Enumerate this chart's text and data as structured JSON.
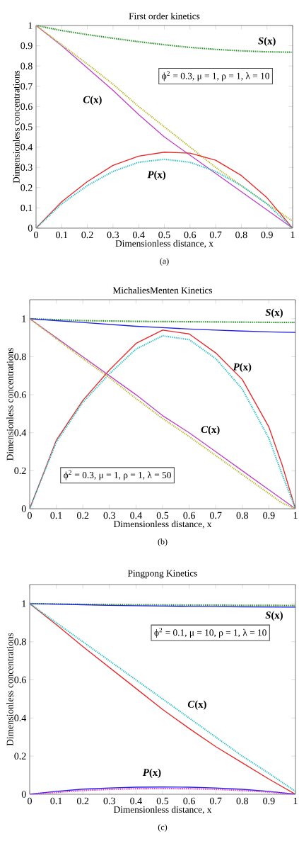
{
  "chart_data": [
    {
      "type": "line",
      "title": "First order kinetics",
      "xlabel": "Dimensionless distance, x",
      "ylabel": "Dimensionless concentrations",
      "xlim": [
        0,
        1
      ],
      "ylim": [
        0,
        1
      ],
      "xticks": [
        0,
        0.1,
        0.2,
        0.3,
        0.4,
        0.5,
        0.6,
        0.7,
        0.8,
        0.9,
        1
      ],
      "yticks": [
        0,
        0.1,
        0.2,
        0.3,
        0.4,
        0.5,
        0.6,
        0.7,
        0.8,
        0.9,
        1
      ],
      "x": [
        0,
        0.1,
        0.2,
        0.3,
        0.4,
        0.5,
        0.6,
        0.7,
        0.8,
        0.9,
        1
      ],
      "series": [
        {
          "color": "#1a8a1a",
          "line_style": "dotted",
          "values": [
            1,
            0.975,
            0.955,
            0.937,
            0.92,
            0.905,
            0.892,
            0.882,
            0.875,
            0.87,
            0.868
          ]
        },
        {
          "color": "#c040c8",
          "line_style": "solid",
          "values": [
            1,
            0.9,
            0.79,
            0.68,
            0.56,
            0.45,
            0.36,
            0.27,
            0.18,
            0.09,
            0
          ]
        },
        {
          "color": "#b8b830",
          "line_style": "dotted",
          "values": [
            1,
            0.905,
            0.81,
            0.71,
            0.6,
            0.5,
            0.4,
            0.3,
            0.21,
            0.12,
            0.035
          ]
        },
        {
          "color": "#e82828",
          "line_style": "solid",
          "values": [
            0,
            0.13,
            0.23,
            0.31,
            0.355,
            0.375,
            0.37,
            0.335,
            0.26,
            0.15,
            0
          ]
        },
        {
          "color": "#30c0c8",
          "line_style": "dotted",
          "values": [
            0,
            0.12,
            0.21,
            0.28,
            0.325,
            0.34,
            0.325,
            0.28,
            0.21,
            0.12,
            0
          ]
        }
      ],
      "annotations": [
        "*S*(x)",
        "*C*(x)",
        "*P*(x)",
        "ϕ$^{2}$ = 0.3, μ = 1, ρ = 1, λ = 10",
        "(a)"
      ]
    },
    {
      "type": "line",
      "title": "MichaliesMenten Kinetics",
      "xlabel": "Dimensionless distance, x",
      "ylabel": "Dimensionless concentrations",
      "xlim": [
        0,
        1
      ],
      "ylim": [
        0,
        1.1
      ],
      "xticks": [
        0,
        0.1,
        0.2,
        0.3,
        0.4,
        0.5,
        0.6,
        0.7,
        0.8,
        0.9,
        1
      ],
      "yticks": [
        0,
        0.2,
        0.4,
        0.6,
        0.8,
        1
      ],
      "x": [
        0,
        0.1,
        0.2,
        0.3,
        0.4,
        0.5,
        0.6,
        0.7,
        0.8,
        0.9,
        0.95,
        1
      ],
      "series": [
        {
          "color": "#1a8a1a",
          "line_style": "dotted",
          "values": [
            1,
            0.995,
            0.99,
            0.988,
            0.986,
            0.985,
            0.984,
            0.983,
            0.982,
            0.981,
            0.98,
            0.98
          ]
        },
        {
          "color": "#2020e0",
          "line_style": "solid",
          "values": [
            1,
            0.99,
            0.98,
            0.97,
            0.96,
            0.953,
            0.946,
            0.94,
            0.935,
            0.931,
            0.929,
            0.928
          ]
        },
        {
          "color": "#e82828",
          "line_style": "solid",
          "values": [
            0,
            0.36,
            0.57,
            0.73,
            0.87,
            0.94,
            0.92,
            0.82,
            0.68,
            0.43,
            0.23,
            0
          ]
        },
        {
          "color": "#30c0c8",
          "line_style": "dotted",
          "values": [
            0,
            0.35,
            0.56,
            0.71,
            0.84,
            0.91,
            0.89,
            0.79,
            0.63,
            0.37,
            0.18,
            0
          ]
        },
        {
          "color": "#c040c8",
          "line_style": "solid",
          "values": [
            1,
            0.9,
            0.8,
            0.7,
            0.6,
            0.49,
            0.4,
            0.3,
            0.2,
            0.1,
            0.05,
            0
          ]
        },
        {
          "color": "#b8b830",
          "line_style": "dotted",
          "values": [
            1,
            0.895,
            0.79,
            0.69,
            0.58,
            0.475,
            0.38,
            0.28,
            0.18,
            0.08,
            0.03,
            0
          ]
        }
      ],
      "annotations": [
        "*S*(x)",
        "*P*(x)",
        "*C*(x)",
        "ϕ$^{2}$ = 0.3, μ = 1, ρ = 1, λ = 50",
        "(b)"
      ]
    },
    {
      "type": "line",
      "title": "Pingpong Kinetics",
      "xlabel": "Dimensionless distance, x",
      "ylabel": "Dimensionless concentrations",
      "xlim": [
        0,
        1
      ],
      "ylim": [
        0,
        1.1
      ],
      "xticks": [
        0,
        0.1,
        0.2,
        0.3,
        0.4,
        0.5,
        0.6,
        0.7,
        0.8,
        0.9,
        1
      ],
      "yticks": [
        0,
        0.2,
        0.4,
        0.6,
        0.8,
        1
      ],
      "x": [
        0,
        0.1,
        0.2,
        0.3,
        0.4,
        0.5,
        0.6,
        0.7,
        0.8,
        0.9,
        1
      ],
      "series": [
        {
          "color": "#1a8a1a",
          "line_style": "dotted",
          "values": [
            1,
            0.998,
            0.996,
            0.995,
            0.994,
            0.993,
            0.992,
            0.992,
            0.991,
            0.991,
            0.99
          ]
        },
        {
          "color": "#2020e0",
          "line_style": "solid",
          "values": [
            1,
            0.997,
            0.994,
            0.991,
            0.989,
            0.987,
            0.985,
            0.984,
            0.983,
            0.982,
            0.981
          ]
        },
        {
          "color": "#e82828",
          "line_style": "solid",
          "values": [
            1,
            0.89,
            0.775,
            0.665,
            0.555,
            0.445,
            0.345,
            0.25,
            0.165,
            0.08,
            0
          ]
        },
        {
          "color": "#30c0c8",
          "line_style": "dotted",
          "values": [
            1,
            0.9,
            0.8,
            0.7,
            0.6,
            0.5,
            0.4,
            0.3,
            0.2,
            0.11,
            0.015
          ]
        },
        {
          "color": "#2020e0",
          "line_style": "solid",
          "values": [
            0,
            0.015,
            0.027,
            0.033,
            0.037,
            0.038,
            0.037,
            0.033,
            0.026,
            0.015,
            0
          ]
        },
        {
          "color": "#e030e0",
          "line_style": "dotted",
          "values": [
            0,
            0.01,
            0.02,
            0.026,
            0.029,
            0.03,
            0.029,
            0.026,
            0.02,
            0.012,
            0
          ]
        }
      ],
      "annotations": [
        "*S*(x)",
        "*C*(x)",
        "*P*(x)",
        "ϕ$^{2}$ = 0.1, μ = 10, ρ = 1, λ = 10",
        "(c)"
      ]
    }
  ]
}
